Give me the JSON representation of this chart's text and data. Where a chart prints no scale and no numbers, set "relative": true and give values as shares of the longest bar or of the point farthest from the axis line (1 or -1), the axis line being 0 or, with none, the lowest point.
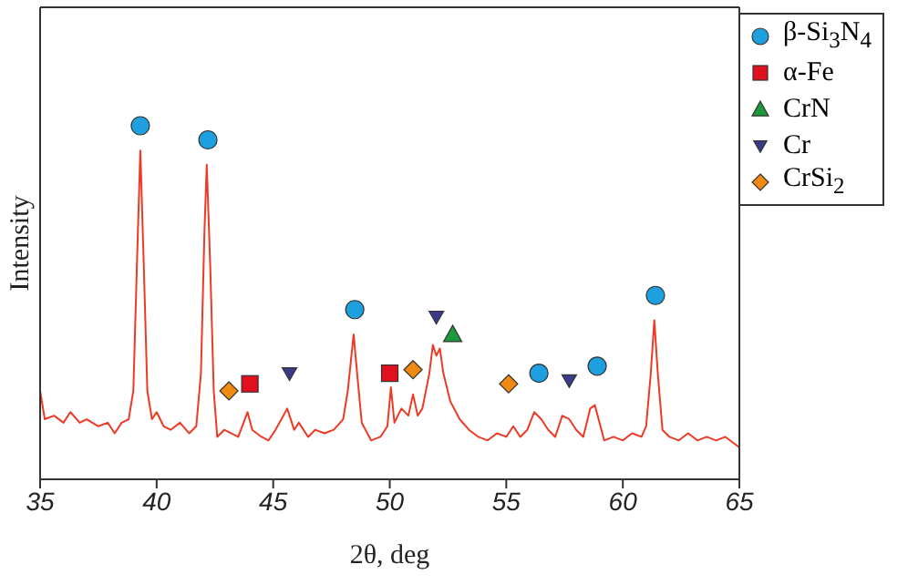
{
  "chart_data": {
    "type": "line",
    "relative": true,
    "xlabel": "2θ, deg",
    "ylabel": "Intensity",
    "xlim": [
      35,
      65
    ],
    "xticks": [
      35,
      40,
      45,
      50,
      55,
      60,
      65
    ],
    "legend": "top right",
    "grid": false,
    "series": [
      {
        "color": "#ee3a24",
        "marker": "none",
        "line_style": "solid",
        "x": [
          35,
          35.2,
          35.6,
          36,
          36.3,
          36.7,
          37,
          37.5,
          37.9,
          38.2,
          38.5,
          38.8,
          39.0,
          39.15,
          39.3,
          39.45,
          39.6,
          39.8,
          40.0,
          40.3,
          40.6,
          41,
          41.4,
          41.7,
          41.9,
          42.05,
          42.15,
          42.3,
          42.45,
          42.6,
          42.9,
          43.2,
          43.5,
          43.9,
          44.1,
          44.5,
          44.8,
          45.1,
          45.6,
          45.9,
          46.1,
          46.5,
          46.8,
          47.2,
          47.6,
          48.0,
          48.2,
          48.45,
          48.6,
          48.8,
          49.2,
          49.6,
          49.9,
          50.05,
          50.2,
          50.5,
          50.8,
          51.0,
          51.2,
          51.4,
          51.7,
          51.85,
          52.0,
          52.15,
          52.3,
          52.6,
          53.0,
          53.4,
          53.8,
          54.2,
          54.6,
          55.0,
          55.3,
          55.6,
          55.9,
          56.2,
          56.5,
          56.8,
          57.1,
          57.4,
          57.7,
          58.0,
          58.3,
          58.6,
          58.8,
          59.0,
          59.2,
          59.6,
          60.0,
          60.4,
          60.8,
          61.0,
          61.2,
          61.35,
          61.5,
          61.7,
          62,
          62.4,
          62.8,
          63.2,
          63.6,
          64,
          64.4,
          65
        ],
        "values": [
          0.25,
          0.17,
          0.18,
          0.16,
          0.19,
          0.16,
          0.17,
          0.15,
          0.16,
          0.13,
          0.16,
          0.17,
          0.25,
          0.6,
          0.93,
          0.6,
          0.25,
          0.17,
          0.19,
          0.15,
          0.14,
          0.16,
          0.13,
          0.15,
          0.3,
          0.7,
          0.89,
          0.6,
          0.25,
          0.12,
          0.14,
          0.13,
          0.12,
          0.19,
          0.14,
          0.12,
          0.11,
          0.14,
          0.2,
          0.14,
          0.16,
          0.12,
          0.14,
          0.13,
          0.14,
          0.17,
          0.25,
          0.41,
          0.3,
          0.16,
          0.11,
          0.12,
          0.15,
          0.26,
          0.16,
          0.2,
          0.18,
          0.24,
          0.18,
          0.2,
          0.3,
          0.38,
          0.35,
          0.37,
          0.3,
          0.22,
          0.17,
          0.14,
          0.12,
          0.11,
          0.13,
          0.12,
          0.15,
          0.12,
          0.14,
          0.19,
          0.17,
          0.14,
          0.12,
          0.18,
          0.17,
          0.14,
          0.12,
          0.2,
          0.21,
          0.16,
          0.11,
          0.12,
          0.11,
          0.13,
          0.12,
          0.15,
          0.3,
          0.45,
          0.3,
          0.14,
          0.12,
          0.11,
          0.13,
          0.11,
          0.12,
          0.11,
          0.12,
          0.09
        ]
      },
      {
        "type": "scatter",
        "name": "β-Si$_{3}$N$_{4}$",
        "color": "#1e9fe0",
        "marker": "circle",
        "x": [
          39.3,
          42.2,
          48.5,
          56.4,
          58.9,
          61.4
        ],
        "values": [
          1.0,
          0.96,
          0.48,
          0.3,
          0.32,
          0.52
        ]
      },
      {
        "type": "scatter",
        "name": "α-Fe",
        "color": "#e0101e",
        "marker": "square",
        "x": [
          44.0,
          50.0
        ],
        "values": [
          0.27,
          0.3
        ]
      },
      {
        "type": "scatter",
        "name": "CrN",
        "color": "#1a9a3a",
        "marker": "triangle",
        "x": [
          52.7
        ],
        "values": [
          0.41
        ]
      },
      {
        "type": "scatter",
        "name": "Cr",
        "color": "#3a3a8c",
        "marker": "triangle-down",
        "x": [
          45.7,
          52.0,
          57.7
        ],
        "values": [
          0.3,
          0.46,
          0.28
        ]
      },
      {
        "type": "scatter",
        "name": "CrSi$_{2}$",
        "color": "#f08a10",
        "marker": "diamond",
        "x": [
          43.1,
          51.0,
          55.1
        ],
        "values": [
          0.25,
          0.31,
          0.27
        ]
      }
    ]
  }
}
